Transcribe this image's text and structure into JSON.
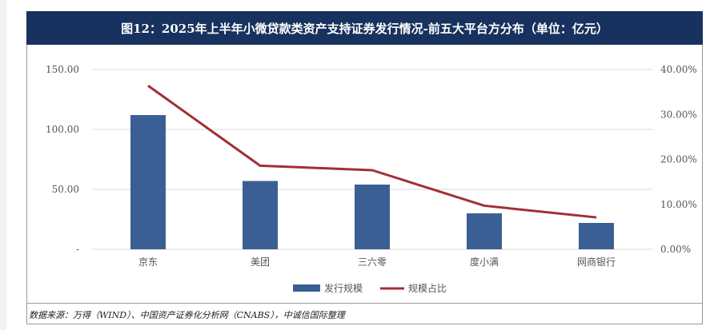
{
  "title": "图12：2025年上半年小微贷款类资产支持证券发行情况-前五大平台方分布（单位：亿元）",
  "source": "数据来源：万得（WIND）、中国资产证券化分析网（CNABS），中诚信国际整理",
  "colors": {
    "title_bg": "#17325e",
    "bar": "#3a5f94",
    "line": "#a03034"
  },
  "chart_data": {
    "type": "bar+line",
    "categories": [
      "京东",
      "美团",
      "三六零",
      "度小满",
      "网商银行"
    ],
    "series": [
      {
        "name": "发行规模",
        "type": "bar",
        "axis": "left",
        "values": [
          112,
          57,
          54,
          30,
          22
        ]
      },
      {
        "name": "规模占比",
        "type": "line",
        "axis": "right",
        "values": [
          0.364,
          0.186,
          0.176,
          0.097,
          0.071
        ]
      }
    ],
    "y_left": {
      "lim": [
        0,
        150
      ],
      "ticks": [
        0,
        50,
        100,
        150
      ],
      "tick_labels": [
        "-",
        "50.00",
        "100.00",
        "150.00"
      ]
    },
    "y_right": {
      "lim": [
        0,
        0.4
      ],
      "ticks": [
        0,
        0.1,
        0.2,
        0.3,
        0.4
      ],
      "tick_labels": [
        "0.00%",
        "10.00%",
        "20.00%",
        "30.00%",
        "40.00%"
      ]
    },
    "grid": true,
    "legend": "bottom-center"
  }
}
